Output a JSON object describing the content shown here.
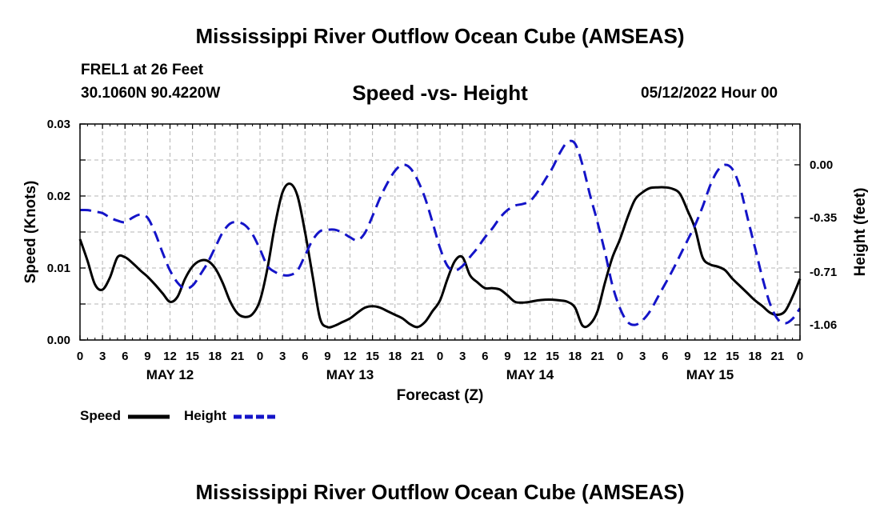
{
  "header": {
    "title": "Mississippi River Outflow Ocean Cube (AMSEAS)",
    "station": "FREL1 at 26 Feet",
    "coords": "30.1060N  90.4220W",
    "subtitle": "Speed -vs- Height",
    "datetime": "05/12/2022 Hour 00"
  },
  "footer": {
    "title": "Mississippi River Outflow Ocean Cube (AMSEAS)"
  },
  "colors": {
    "speed": "#000000",
    "height": "#1414c8",
    "grid": "#b4b4b4"
  },
  "chart_data": {
    "type": "line",
    "xlabel": "Forecast (Z)",
    "ylabel": "Speed (Knots)",
    "y2label": "Height (feet)",
    "xlim": [
      0,
      96
    ],
    "ylim": [
      0,
      0.03
    ],
    "y2lim": [
      -1.16,
      0.27
    ],
    "x_ticks": [
      0,
      3,
      6,
      9,
      12,
      15,
      18,
      21,
      24,
      27,
      30,
      33,
      36,
      39,
      42,
      45,
      48,
      51,
      54,
      57,
      60,
      63,
      66,
      69,
      72,
      75,
      78,
      81,
      84,
      87,
      90,
      93,
      96
    ],
    "x_tick_labels": [
      "0",
      "3",
      "6",
      "9",
      "12",
      "15",
      "18",
      "21",
      "0",
      "3",
      "6",
      "9",
      "12",
      "15",
      "18",
      "21",
      "0",
      "3",
      "6",
      "9",
      "12",
      "15",
      "18",
      "21",
      "0",
      "3",
      "6",
      "9",
      "12",
      "15",
      "18",
      "21",
      "0"
    ],
    "day_labels": [
      {
        "x": 12,
        "label": "MAY 12"
      },
      {
        "x": 36,
        "label": "MAY 13"
      },
      {
        "x": 60,
        "label": "MAY 14"
      },
      {
        "x": 84,
        "label": "MAY 15"
      }
    ],
    "y_ticks": [
      0,
      0.005,
      0.01,
      0.015,
      0.02,
      0.025,
      0.03
    ],
    "y_tick_labels": [
      "0.00",
      "",
      "0.01",
      "",
      "0.02",
      "",
      "0.03"
    ],
    "y2_ticks": [
      0.0,
      -0.35,
      -0.71,
      -1.06
    ],
    "y2_tick_labels": [
      "0.00",
      "-0.35",
      "-0.71",
      "-1.06"
    ],
    "legend": [
      {
        "name": "Speed",
        "style": "solid"
      },
      {
        "name": "Height",
        "style": "dashed"
      }
    ],
    "series": [
      {
        "name": "Speed",
        "axis": "left",
        "x": [
          0,
          1,
          2,
          3,
          4,
          5,
          6,
          7,
          8,
          9,
          10,
          11,
          12,
          13,
          14,
          15,
          16,
          17,
          18,
          19,
          20,
          21,
          22,
          23,
          24,
          25,
          26,
          27,
          28,
          29,
          30,
          31,
          32,
          33,
          34,
          35,
          36,
          37,
          38,
          39,
          40,
          41,
          42,
          43,
          44,
          45,
          46,
          47,
          48,
          49,
          50,
          51,
          52,
          53,
          54,
          55,
          56,
          57,
          58,
          59,
          60,
          61,
          62,
          63,
          64,
          65,
          66,
          67,
          68,
          69,
          70,
          71,
          72,
          73,
          74,
          75,
          76,
          77,
          78,
          79,
          80,
          81,
          82,
          83,
          84,
          85,
          86,
          87,
          88,
          89,
          90,
          91,
          92,
          93,
          94,
          95,
          96
        ],
        "values": [
          0.014,
          0.011,
          0.0077,
          0.007,
          0.0087,
          0.0115,
          0.0115,
          0.0107,
          0.0097,
          0.0088,
          0.0077,
          0.0065,
          0.0053,
          0.006,
          0.0085,
          0.0102,
          0.011,
          0.011,
          0.01,
          0.008,
          0.0054,
          0.0037,
          0.0032,
          0.0036,
          0.0055,
          0.01,
          0.016,
          0.0205,
          0.0217,
          0.02,
          0.015,
          0.009,
          0.003,
          0.0018,
          0.002,
          0.0025,
          0.003,
          0.0038,
          0.0045,
          0.0047,
          0.0045,
          0.004,
          0.0035,
          0.003,
          0.0022,
          0.0018,
          0.0025,
          0.004,
          0.0055,
          0.0085,
          0.011,
          0.0115,
          0.009,
          0.008,
          0.0072,
          0.0072,
          0.007,
          0.0062,
          0.0053,
          0.0052,
          0.0053,
          0.0055,
          0.0056,
          0.0056,
          0.0055,
          0.0053,
          0.0045,
          0.002,
          0.0022,
          0.004,
          0.008,
          0.0115,
          0.014,
          0.017,
          0.0195,
          0.0205,
          0.0211,
          0.0212,
          0.0212,
          0.021,
          0.0203,
          0.018,
          0.0155,
          0.0115,
          0.0105,
          0.0102,
          0.0097,
          0.0085,
          0.0075,
          0.0065,
          0.0055,
          0.0047,
          0.0038,
          0.0035,
          0.004,
          0.006,
          0.0085
        ]
      },
      {
        "name": "Height",
        "axis": "right",
        "x": [
          0,
          1,
          2,
          3,
          4,
          5,
          6,
          7,
          8,
          9,
          10,
          11,
          12,
          13,
          14,
          15,
          16,
          17,
          18,
          19,
          20,
          21,
          22,
          23,
          24,
          25,
          26,
          27,
          28,
          29,
          30,
          31,
          32,
          33,
          34,
          35,
          36,
          37,
          38,
          39,
          40,
          41,
          42,
          43,
          44,
          45,
          46,
          47,
          48,
          49,
          50,
          51,
          52,
          53,
          54,
          55,
          56,
          57,
          58,
          59,
          60,
          61,
          62,
          63,
          64,
          65,
          66,
          67,
          68,
          69,
          70,
          71,
          72,
          73,
          74,
          75,
          76,
          77,
          78,
          79,
          80,
          81,
          82,
          83,
          84,
          85,
          86,
          87,
          88,
          89,
          90,
          91,
          92,
          93,
          94,
          95,
          96
        ],
        "values": [
          -0.3,
          -0.3,
          -0.31,
          -0.32,
          -0.35,
          -0.37,
          -0.38,
          -0.35,
          -0.33,
          -0.35,
          -0.45,
          -0.58,
          -0.7,
          -0.78,
          -0.82,
          -0.8,
          -0.73,
          -0.65,
          -0.55,
          -0.45,
          -0.39,
          -0.38,
          -0.4,
          -0.46,
          -0.56,
          -0.67,
          -0.71,
          -0.73,
          -0.73,
          -0.7,
          -0.6,
          -0.5,
          -0.44,
          -0.43,
          -0.43,
          -0.45,
          -0.48,
          -0.5,
          -0.45,
          -0.34,
          -0.22,
          -0.12,
          -0.04,
          0.0,
          -0.02,
          -0.1,
          -0.22,
          -0.38,
          -0.55,
          -0.67,
          -0.7,
          -0.67,
          -0.61,
          -0.55,
          -0.48,
          -0.42,
          -0.35,
          -0.3,
          -0.27,
          -0.26,
          -0.24,
          -0.18,
          -0.1,
          -0.02,
          0.08,
          0.15,
          0.14,
          0.0,
          -0.2,
          -0.38,
          -0.58,
          -0.8,
          -0.95,
          -1.04,
          -1.06,
          -1.03,
          -0.97,
          -0.88,
          -0.79,
          -0.7,
          -0.6,
          -0.5,
          -0.4,
          -0.28,
          -0.14,
          -0.04,
          0.0,
          -0.03,
          -0.15,
          -0.35,
          -0.55,
          -0.75,
          -0.92,
          -1.02,
          -1.05,
          -1.02,
          -0.95
        ]
      }
    ]
  }
}
